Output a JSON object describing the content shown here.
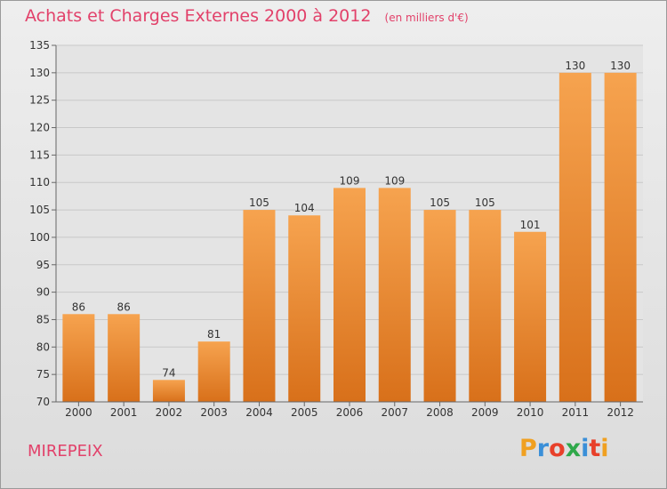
{
  "title": "Achats et Charges Externes 2000 à 2012",
  "subtitle": "(en milliers d'€)",
  "place_label": "MIREPEIX",
  "logo": {
    "letters": [
      "P",
      "r",
      "o",
      "x",
      "i",
      "t",
      "i"
    ],
    "colors": [
      "#f0a020",
      "#3a8fd8",
      "#e8402a",
      "#2fa84a",
      "#3a8fd8",
      "#e8402a",
      "#f0a020"
    ]
  },
  "colors": {
    "title": "#e2416a",
    "bar_top": "#f6a34f",
    "bar_bottom": "#d8701a",
    "grid": "#c8c8c8",
    "axis": "#666666"
  },
  "chart_data": {
    "type": "bar",
    "categories": [
      "2000",
      "2001",
      "2002",
      "2003",
      "2004",
      "2005",
      "2006",
      "2007",
      "2008",
      "2009",
      "2010",
      "2011",
      "2012"
    ],
    "values": [
      86,
      86,
      74,
      81,
      105,
      104,
      109,
      109,
      105,
      105,
      101,
      130,
      130
    ],
    "y_ticks": [
      70,
      75,
      80,
      85,
      90,
      95,
      100,
      105,
      110,
      115,
      120,
      125,
      130,
      135
    ],
    "ylim": [
      70,
      135
    ],
    "grid": true,
    "xlabel": "",
    "ylabel": ""
  }
}
